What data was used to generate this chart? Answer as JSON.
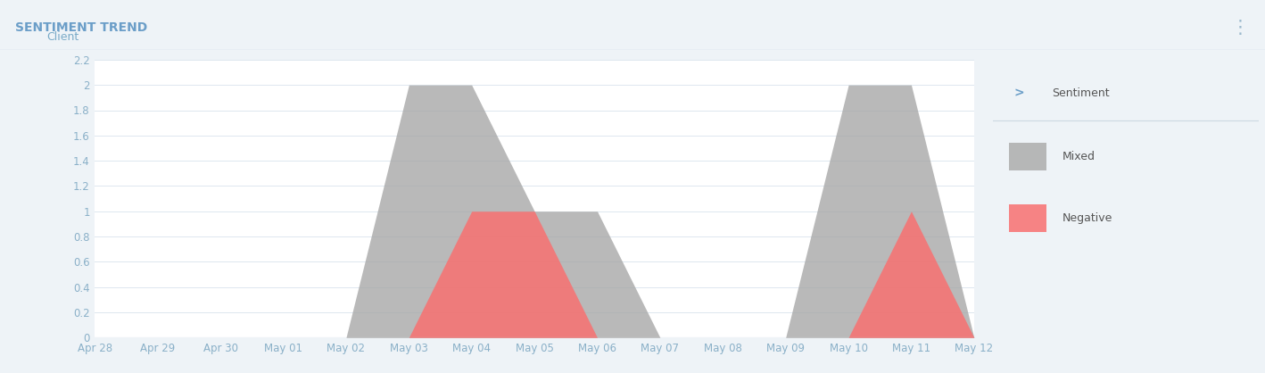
{
  "title": "SENTIMENT TREND",
  "ylabel": "Client",
  "background_color": "#eef3f7",
  "plot_background_color": "#ffffff",
  "title_color": "#6b9ec8",
  "ylabel_color": "#7aabc8",
  "tick_label_color": "#8ab0c8",
  "grid_color": "#dde7ef",
  "ylim": [
    0,
    2.2
  ],
  "yticks": [
    0,
    0.2,
    0.4,
    0.6,
    0.8,
    1.0,
    1.2,
    1.4,
    1.6,
    1.8,
    2.0,
    2.2
  ],
  "ytick_labels": [
    "0",
    "0.2",
    "0.4",
    "0.6",
    "0.8",
    "1",
    "1.2",
    "1.4",
    "1.6",
    "1.8",
    "2",
    "2.2"
  ],
  "x_labels": [
    "Apr 28",
    "Apr 29",
    "Apr 30",
    "May 01",
    "May 02",
    "May 03",
    "May 04",
    "May 05",
    "May 06",
    "May 07",
    "May 08",
    "May 09",
    "May 10",
    "May 11",
    "May 12"
  ],
  "x_indices": [
    0,
    1,
    2,
    3,
    4,
    5,
    6,
    7,
    8,
    9,
    10,
    11,
    12,
    13,
    14
  ],
  "mixed_values": [
    0,
    0,
    0,
    0,
    0,
    2.0,
    2.0,
    1.0,
    1.0,
    0,
    0,
    0,
    2.0,
    2.0,
    0
  ],
  "negative_values": [
    0,
    0,
    0,
    0,
    0,
    0,
    1.0,
    1.0,
    0,
    0,
    0,
    0,
    0,
    1.0,
    0
  ],
  "mixed_color": "#a8a8a8",
  "negative_color": "#f87070",
  "mixed_alpha": 0.8,
  "negative_alpha": 0.85,
  "legend_chevron_color": "#6b9ec8",
  "legend_text_color": "#555555",
  "header_bg_color": "#edf2f7",
  "border_color": "#ccd9e3",
  "title_fontsize": 10,
  "tick_fontsize": 8.5,
  "ylabel_fontsize": 9,
  "legend_fontsize": 9
}
